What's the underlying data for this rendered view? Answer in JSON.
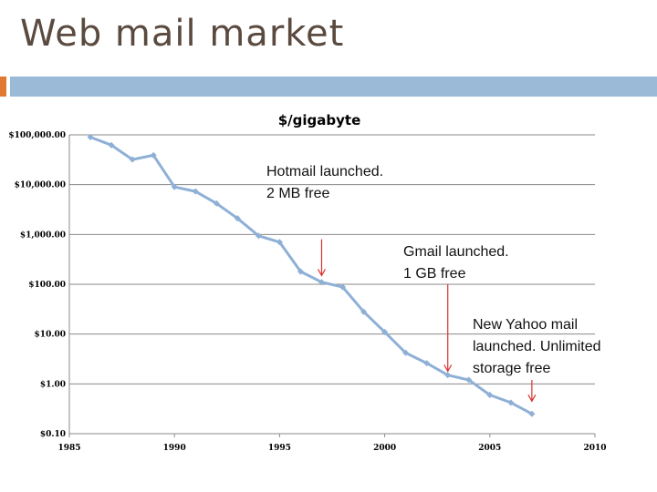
{
  "slide": {
    "title": "Web mail market",
    "accent_color": "#e07a32",
    "band_color": "#9bbad8"
  },
  "chart_data": {
    "type": "line",
    "title": "$/gigabyte",
    "xlabel": "",
    "ylabel": "",
    "y_scale": "log",
    "xlim": [
      1985,
      2010
    ],
    "ylim": [
      0.1,
      100000
    ],
    "x_ticks": [
      1985,
      1990,
      1995,
      2000,
      2005,
      2010
    ],
    "x_tick_labels": [
      "1985",
      "1990",
      "1995",
      "2000",
      "2005",
      "2010"
    ],
    "y_ticks": [
      100000,
      10000,
      1000,
      100,
      10,
      1,
      0.1
    ],
    "y_tick_labels": [
      "$100,000.00",
      "$10,000.00",
      "$1,000.00",
      "$100.00",
      "$10.00",
      "$1.00",
      "$0.10"
    ],
    "grid": "horizontal",
    "series": [
      {
        "color": "#8fb0d6",
        "points": [
          [
            1986,
            90000
          ],
          [
            1987,
            62000
          ],
          [
            1988,
            32000
          ],
          [
            1989,
            39000
          ],
          [
            1990,
            9000
          ],
          [
            1991,
            7300
          ],
          [
            1992,
            4200
          ],
          [
            1993,
            2100
          ],
          [
            1994,
            940
          ],
          [
            1995,
            700
          ],
          [
            1996,
            180
          ],
          [
            1997,
            110
          ],
          [
            1998,
            88
          ],
          [
            1999,
            28
          ],
          [
            2000,
            11
          ],
          [
            2001,
            4.2
          ],
          [
            2002,
            2.6
          ],
          [
            2003,
            1.5
          ],
          [
            2004,
            1.2
          ],
          [
            2005,
            0.6
          ],
          [
            2006,
            0.42
          ],
          [
            2007,
            0.25
          ]
        ]
      }
    ],
    "annotations": [
      {
        "lines": [
          "Hotmail launched.",
          "2 MB free"
        ],
        "arrow_x": 1997,
        "arrow_y_from": 800,
        "arrow_y_to": 150
      },
      {
        "lines": [
          "Gmail launched.",
          "1 GB free"
        ],
        "arrow_x": 2003,
        "arrow_y_from": 100,
        "arrow_y_to": 1.8
      },
      {
        "lines": [
          "New Yahoo mail",
          "launched. Unlimited",
          "storage free"
        ],
        "arrow_x": 2007,
        "arrow_y_from": 1.2,
        "arrow_y_to": 0.45
      }
    ],
    "arrow_color": "#d93030"
  }
}
